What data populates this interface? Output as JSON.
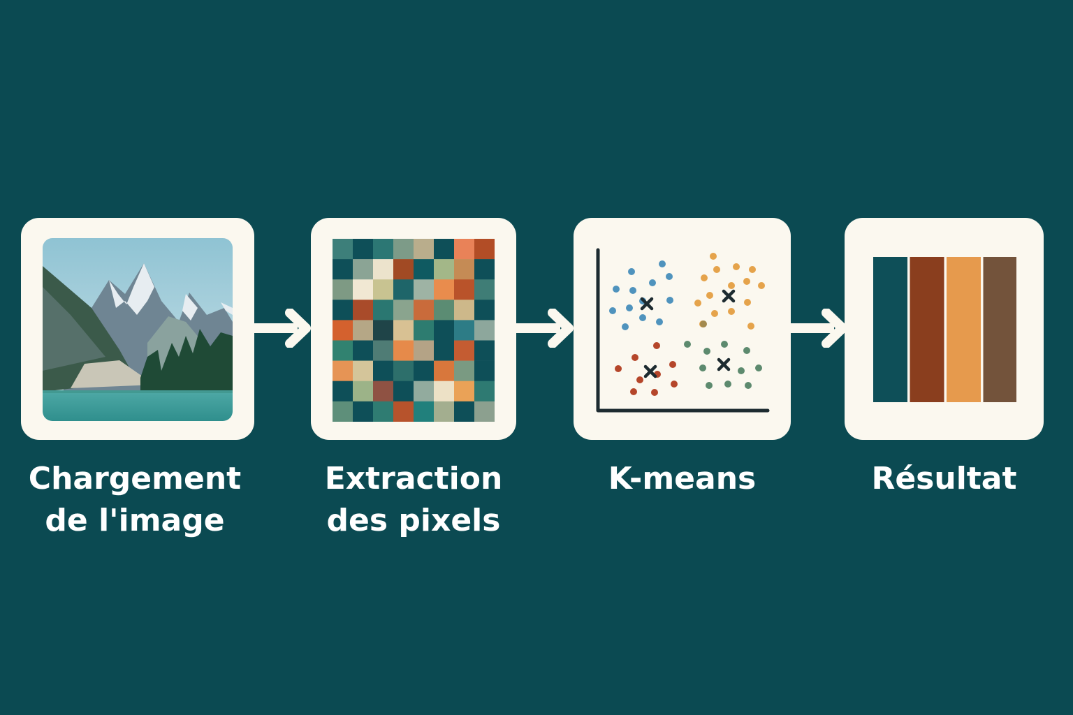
{
  "colors": {
    "background": "#0b4a52",
    "card": "#fbf8ef",
    "label_text": "#ffffff",
    "arrow": "#fbf8ef"
  },
  "steps": [
    {
      "id": "load",
      "icon": "landscape-photo-icon",
      "label_lines": [
        "Chargement",
        "de l'image"
      ]
    },
    {
      "id": "extract",
      "icon": "pixel-grid-icon",
      "label_lines": [
        "Extraction",
        "des pixels"
      ]
    },
    {
      "id": "kmeans",
      "icon": "scatter-clusters-icon",
      "label_lines": [
        "K-means"
      ]
    },
    {
      "id": "result",
      "icon": "color-palette-icon",
      "label_lines": [
        "Résultat"
      ]
    }
  ],
  "pixel_grid": [
    [
      "#3d7f7a",
      "#0e4f58",
      "#2c7774",
      "#7d9b88",
      "#b9ad8c",
      "#0e4f58",
      "#e98258",
      "#b24d26"
    ],
    [
      "#0e4f58",
      "#8ba495",
      "#ece3cc",
      "#a14a24",
      "#0f5a61",
      "#a3b788",
      "#c58b55",
      "#0e4f58"
    ],
    [
      "#7e9a84",
      "#f1e8d3",
      "#c8c391",
      "#1e6569",
      "#9eb3a4",
      "#e98c4d",
      "#b9532a",
      "#3f7d76"
    ],
    [
      "#0e4f58",
      "#a94b2a",
      "#2a7771",
      "#8aa48e",
      "#c96b3b",
      "#5b8c73",
      "#cdb88a",
      "#0e4f58"
    ],
    [
      "#d4612e",
      "#b5a786",
      "#1f4448",
      "#d8c193",
      "#2d7c70",
      "#0e4f58",
      "#2d7c86",
      "#8da79c"
    ],
    [
      "#318270",
      "#0e4f58",
      "#4f7c75",
      "#e68a4a",
      "#b4a386",
      "#0e4f58",
      "#c45c32",
      "#0e4f58"
    ],
    [
      "#e69455",
      "#d4c59a",
      "#0e4f58",
      "#2d6f6b",
      "#0e4f58",
      "#d8773c",
      "#7a9a82",
      "#0e4f58"
    ],
    [
      "#0e4f58",
      "#9cb388",
      "#8f5243",
      "#0e4f58",
      "#92ab9e",
      "#ede1c6",
      "#eaa257",
      "#2e7a72"
    ],
    [
      "#5e8f7a",
      "#0e4f58",
      "#2f7c72",
      "#b7532c",
      "#21807c",
      "#a3ae8f",
      "#0e4f58",
      "#8ca08f"
    ]
  ],
  "palette": [
    "#0e4f58",
    "#8a3e1e",
    "#e69a4d",
    "#73533b"
  ]
}
